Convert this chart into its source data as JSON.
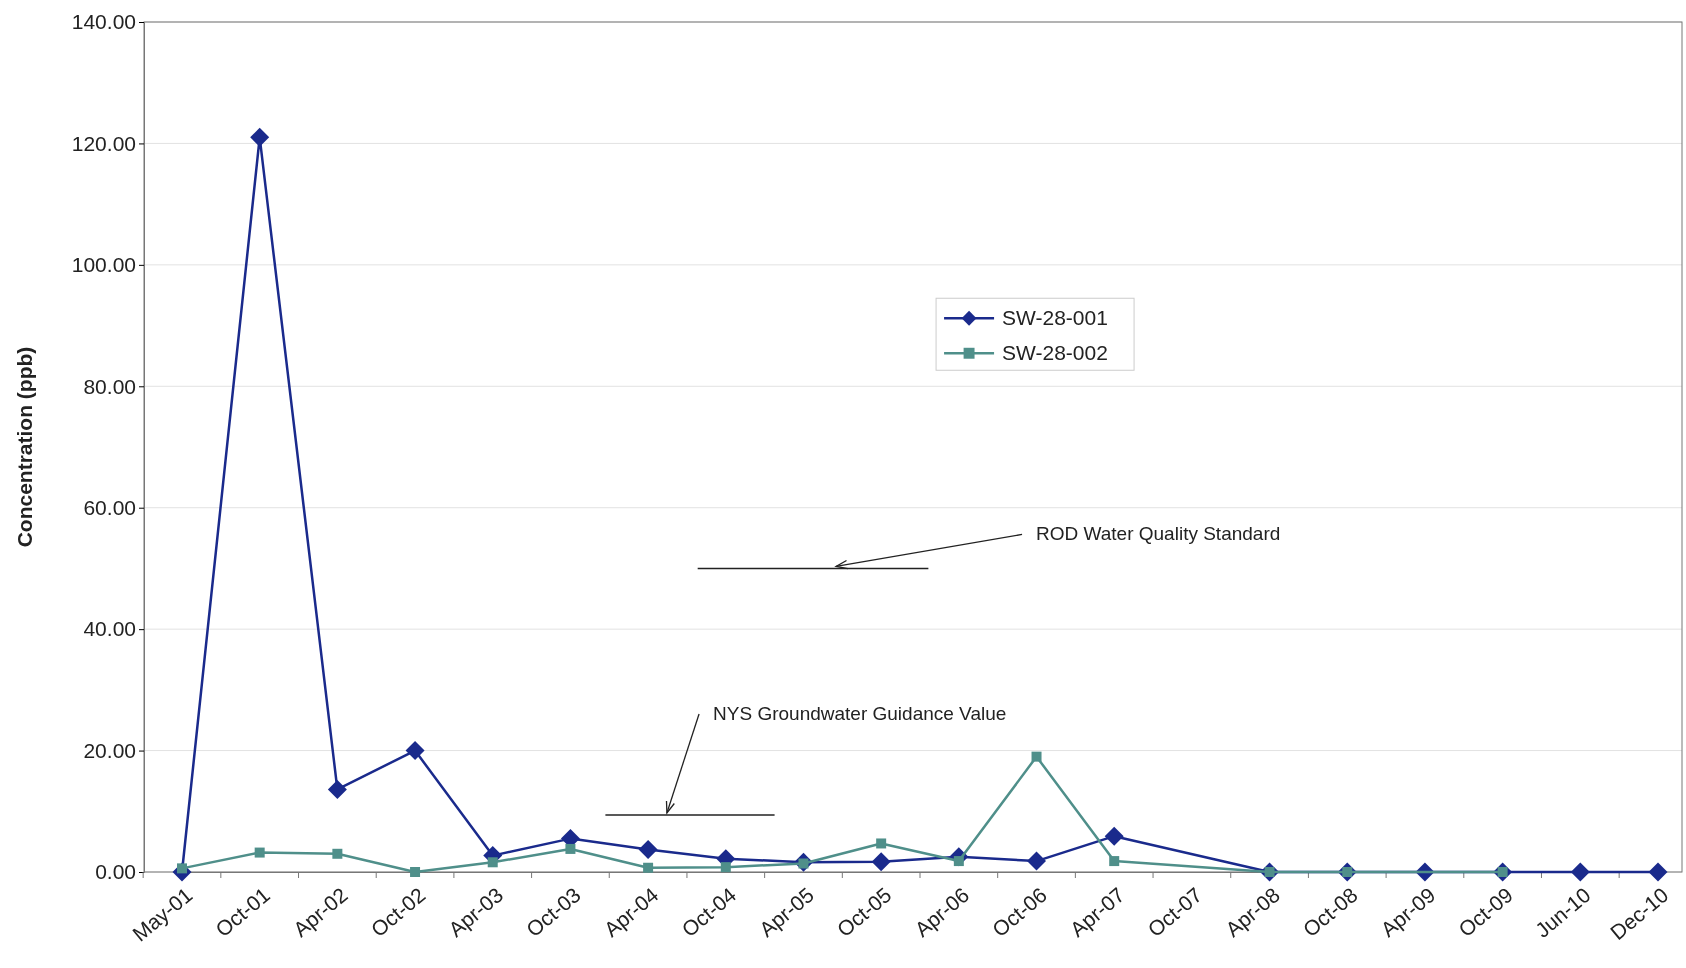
{
  "chart_data": {
    "type": "line",
    "ylabel": "Concentration (ppb)",
    "categories": [
      "May-01",
      "Oct-01",
      "Apr-02",
      "Oct-02",
      "Apr-03",
      "Oct-03",
      "Apr-04",
      "Oct-04",
      "Apr-05",
      "Oct-05",
      "Apr-06",
      "Oct-06",
      "Apr-07",
      "Oct-07",
      "Apr-08",
      "Oct-08",
      "Apr-09",
      "Oct-09",
      "Jun-10",
      "Dec-10"
    ],
    "series": [
      {
        "name": "SW-28-001",
        "color": "#1a2a8c",
        "marker": "diamond",
        "values": [
          0,
          121,
          13.6,
          20,
          2.7,
          5.5,
          3.7,
          2.2,
          1.6,
          1.7,
          2.5,
          1.8,
          5.9,
          null,
          0,
          0,
          0,
          0,
          0,
          0
        ]
      },
      {
        "name": "SW-28-002",
        "color": "#4f8f8a",
        "marker": "square",
        "values": [
          0.6,
          3.2,
          3.0,
          0,
          1.6,
          3.8,
          0.7,
          0.8,
          1.4,
          4.7,
          1.8,
          19,
          1.8,
          null,
          0,
          0,
          null,
          0,
          null,
          null
        ]
      }
    ],
    "ylim": [
      0,
      140
    ],
    "yticks": [
      {
        "value": 0,
        "label": "0.00"
      },
      {
        "value": 20,
        "label": "20.00"
      },
      {
        "value": 40,
        "label": "40.00"
      },
      {
        "value": 60,
        "label": "60.00"
      },
      {
        "value": 80,
        "label": "80.00"
      },
      {
        "value": 100,
        "label": "100.00"
      },
      {
        "value": 120,
        "label": "120.00"
      },
      {
        "value": 140,
        "label": "140.00"
      }
    ],
    "grid": "y",
    "legend": "top",
    "ref_lines": [
      {
        "axis": "y",
        "value": 50,
        "label": "ROD Water Quality Standard",
        "color": "#222222"
      },
      {
        "axis": "y",
        "value": 9.4,
        "label": "NYS Groundwater Guidance Value",
        "color": "#222222"
      }
    ]
  }
}
